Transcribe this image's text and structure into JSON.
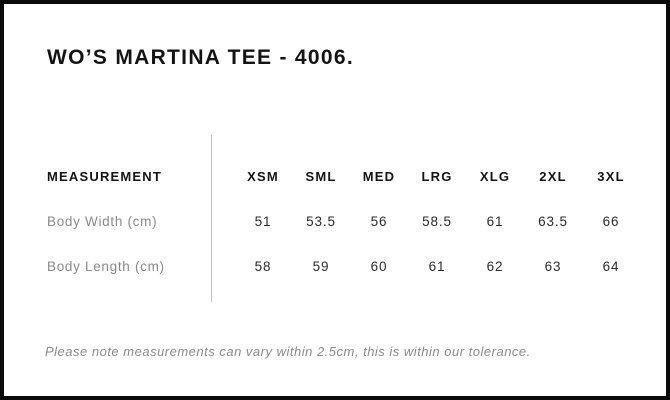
{
  "title": "WO’S MARTINA TEE - 4006.",
  "table": {
    "measurement_header": "MEASUREMENT",
    "size_headers": [
      "XSM",
      "SML",
      "MED",
      "LRG",
      "XLG",
      "2XL",
      "3XL"
    ],
    "rows": [
      {
        "label": "Body Width (cm)",
        "values": [
          "51",
          "53.5",
          "56",
          "58.5",
          "61",
          "63.5",
          "66"
        ]
      },
      {
        "label": "Body Length (cm)",
        "values": [
          "58",
          "59",
          "60",
          "61",
          "62",
          "63",
          "64"
        ]
      }
    ]
  },
  "note": "Please note measurements can vary within 2.5cm, this is within our tolerance.",
  "colors": {
    "frame_border": "#0b0b0b",
    "heading_text": "#141414",
    "muted_text": "#8a8a8a",
    "value_text": "#2b2b2b",
    "divider": "#c2c2c2",
    "background": "#ffffff"
  }
}
